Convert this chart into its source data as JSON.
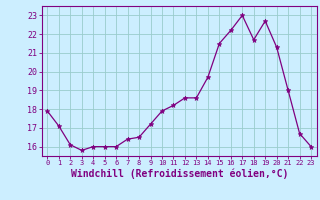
{
  "x": [
    0,
    1,
    2,
    3,
    4,
    5,
    6,
    7,
    8,
    9,
    10,
    11,
    12,
    13,
    14,
    15,
    16,
    17,
    18,
    19,
    20,
    21,
    22,
    23
  ],
  "y": [
    17.9,
    17.1,
    16.1,
    15.8,
    16.0,
    16.0,
    16.0,
    16.4,
    16.5,
    17.2,
    17.9,
    18.2,
    18.6,
    18.6,
    19.7,
    21.5,
    22.2,
    23.0,
    21.7,
    22.7,
    21.3,
    19.0,
    16.7,
    16.0
  ],
  "line_color": "#800080",
  "marker": "*",
  "marker_size": 3.5,
  "xlabel": "Windchill (Refroidissement éolien,°C)",
  "xlabel_fontsize": 7,
  "xtick_labels": [
    "0",
    "1",
    "2",
    "3",
    "4",
    "5",
    "6",
    "7",
    "8",
    "9",
    "10",
    "11",
    "12",
    "13",
    "14",
    "15",
    "16",
    "17",
    "18",
    "19",
    "20",
    "21",
    "22",
    "23"
  ],
  "ytick_vals": [
    16,
    17,
    18,
    19,
    20,
    21,
    22,
    23
  ],
  "ytick_labels": [
    "16",
    "17",
    "18",
    "19",
    "20",
    "21",
    "22",
    "23"
  ],
  "ylim": [
    15.5,
    23.5
  ],
  "xlim": [
    -0.5,
    23.5
  ],
  "background_color": "#cceeff",
  "grid_color": "#99cccc",
  "tick_color": "#800080",
  "label_color": "#800080",
  "border_color": "#800080",
  "xtick_fontsize": 5,
  "ytick_fontsize": 6
}
